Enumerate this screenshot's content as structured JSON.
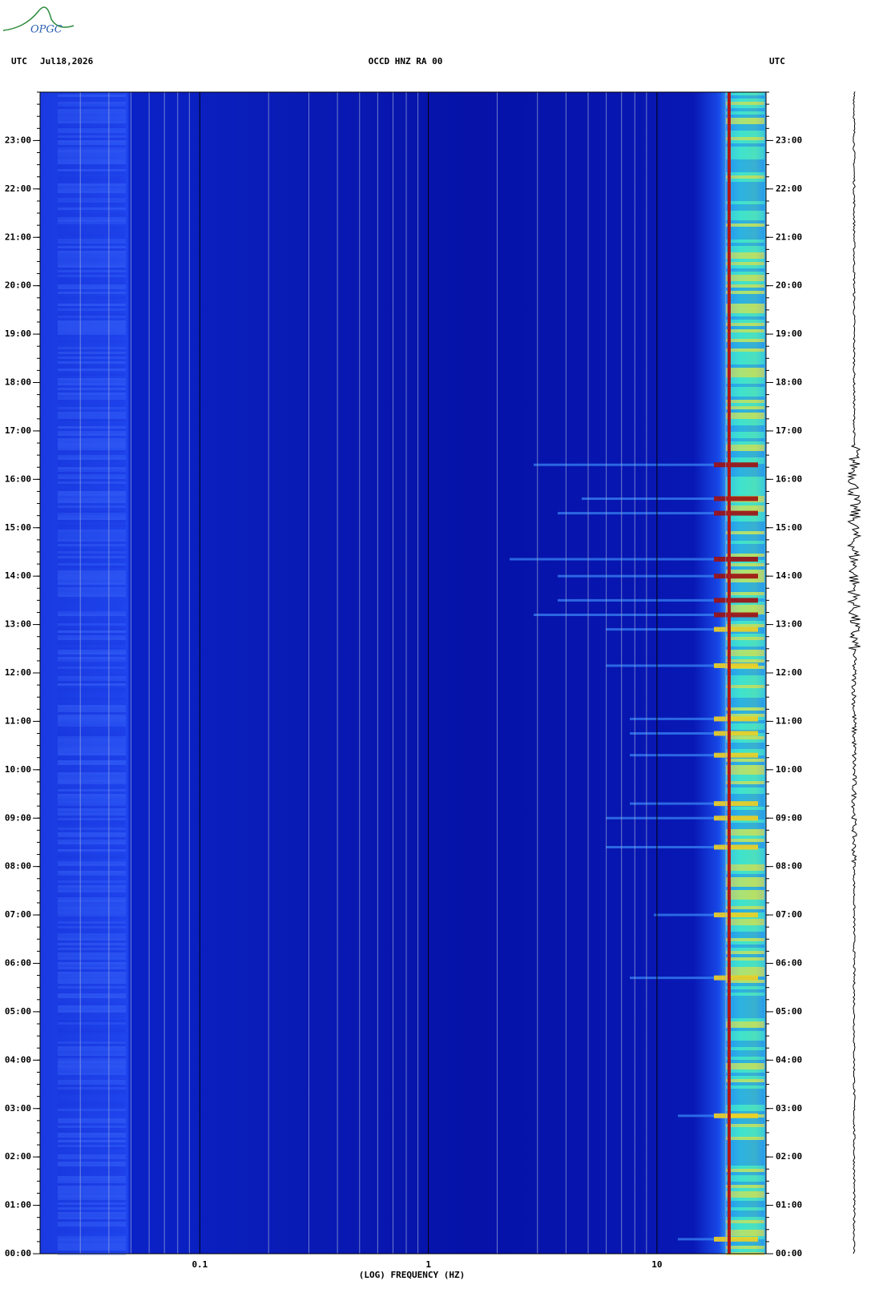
{
  "chart_data": {
    "type": "spectrogram",
    "logo": "OPGC",
    "time_zone_left": "UTC",
    "date": "Jul18,2026",
    "title": "OCCD HNZ RA 00",
    "time_zone_right": "UTC",
    "x_label": "(LOG) FREQUENCY (HZ)",
    "x_scale": "log",
    "xlim": [
      0.02,
      30
    ],
    "xticks": [
      {
        "value": 0.1,
        "label": "0.1"
      },
      1,
      10
    ],
    "xminorticks": [
      0.03,
      0.04,
      0.05,
      0.06,
      0.07,
      0.08,
      0.09,
      0.2,
      0.3,
      0.4,
      0.5,
      0.6,
      0.7,
      0.8,
      0.9,
      2,
      3,
      4,
      5,
      6,
      7,
      8,
      9,
      20
    ],
    "ylim": [
      0,
      24
    ],
    "yticks": [
      {
        "value": 0,
        "label": "00:00"
      },
      {
        "value": 1,
        "label": "01:00"
      },
      {
        "value": 2,
        "label": "02:00"
      },
      {
        "value": 3,
        "label": "03:00"
      },
      {
        "value": 4,
        "label": "04:00"
      },
      {
        "value": 5,
        "label": "05:00"
      },
      {
        "value": 6,
        "label": "06:00"
      },
      {
        "value": 7,
        "label": "07:00"
      },
      {
        "value": 8,
        "label": "08:00"
      },
      {
        "value": 9,
        "label": "09:00"
      },
      {
        "value": 10,
        "label": "10:00"
      },
      {
        "value": 11,
        "label": "11:00"
      },
      {
        "value": 12,
        "label": "12:00"
      },
      {
        "value": 13,
        "label": "13:00"
      },
      {
        "value": 14,
        "label": "14:00"
      },
      {
        "value": 15,
        "label": "15:00"
      },
      {
        "value": 16,
        "label": "16:00"
      },
      {
        "value": 17,
        "label": "17:00"
      },
      {
        "value": 18,
        "label": "18:00"
      },
      {
        "value": 19,
        "label": "19:00"
      },
      {
        "value": 20,
        "label": "20:00"
      },
      {
        "value": 21,
        "label": "21:00"
      },
      {
        "value": 22,
        "label": "22:00"
      },
      {
        "value": 23,
        "label": "23:00"
      }
    ]
  }
}
